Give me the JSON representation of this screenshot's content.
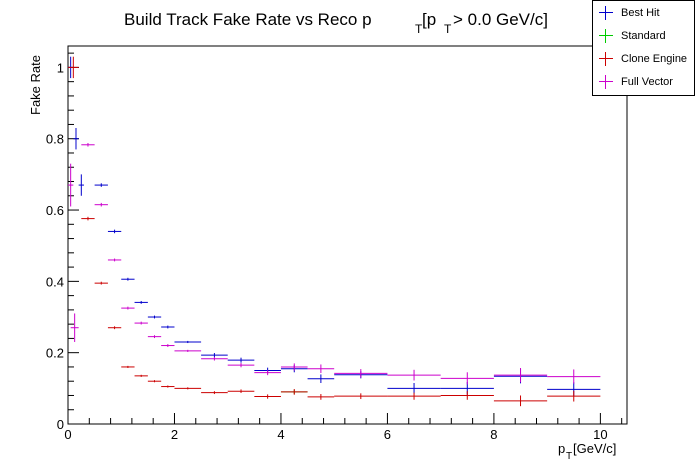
{
  "chart_data": {
    "type": "scatter",
    "title_main": "Build Track Fake Rate vs Reco p",
    "title_sub1": "T",
    "title_mid": " [p",
    "title_sub2": "T",
    "title_tail": " > 0.0 GeV/c]",
    "xlabel_main": "p",
    "xlabel_sub": "T",
    "xlabel_tail": " [GeV/c]",
    "ylabel": "Fake Rate",
    "xlim": [
      0,
      10.5
    ],
    "ylim": [
      0,
      1.06
    ],
    "xticks": [
      0,
      2,
      4,
      6,
      8,
      10
    ],
    "xtick_labels": [
      "0",
      "2",
      "4",
      "6",
      "8",
      "10"
    ],
    "yticks": [
      0,
      0.2,
      0.4,
      0.6,
      0.8,
      1
    ],
    "ytick_labels": [
      "0",
      "0.2",
      "0.4",
      "0.6",
      "0.8",
      "1"
    ],
    "legend_position": "top-right",
    "series": [
      {
        "name": "Best Hit",
        "color": "#0000cc",
        "points": [
          {
            "x": 0.05,
            "xerr": 0.05,
            "y": 1.0,
            "yerr": 0.03
          },
          {
            "x": 0.15,
            "xerr": 0.05,
            "y": 0.8,
            "yerr": 0.03
          },
          {
            "x": 0.25,
            "xerr": 0.05,
            "y": 0.67,
            "yerr": 0.03
          },
          {
            "x": 0.625,
            "xerr": 0.125,
            "y": 0.67,
            "yerr": 0.005
          },
          {
            "x": 0.875,
            "xerr": 0.125,
            "y": 0.54,
            "yerr": 0.005
          },
          {
            "x": 1.125,
            "xerr": 0.125,
            "y": 0.406,
            "yerr": 0.004
          },
          {
            "x": 1.375,
            "xerr": 0.125,
            "y": 0.341,
            "yerr": 0.004
          },
          {
            "x": 1.625,
            "xerr": 0.125,
            "y": 0.3,
            "yerr": 0.004
          },
          {
            "x": 1.875,
            "xerr": 0.125,
            "y": 0.272,
            "yerr": 0.004
          },
          {
            "x": 2.25,
            "xerr": 0.25,
            "y": 0.23,
            "yerr": 0.003
          },
          {
            "x": 2.75,
            "xerr": 0.25,
            "y": 0.193,
            "yerr": 0.006
          },
          {
            "x": 3.25,
            "xerr": 0.25,
            "y": 0.179,
            "yerr": 0.007
          },
          {
            "x": 3.75,
            "xerr": 0.25,
            "y": 0.15,
            "yerr": 0.008
          },
          {
            "x": 4.25,
            "xerr": 0.25,
            "y": 0.155,
            "yerr": 0.01
          },
          {
            "x": 4.75,
            "xerr": 0.25,
            "y": 0.127,
            "yerr": 0.012
          },
          {
            "x": 5.5,
            "xerr": 0.5,
            "y": 0.138,
            "yerr": 0.01
          },
          {
            "x": 6.5,
            "xerr": 0.5,
            "y": 0.1,
            "yerr": 0.015
          },
          {
            "x": 7.5,
            "xerr": 0.5,
            "y": 0.1,
            "yerr": 0.018
          },
          {
            "x": 8.5,
            "xerr": 0.5,
            "y": 0.134,
            "yerr": 0.02
          },
          {
            "x": 9.5,
            "xerr": 0.5,
            "y": 0.097,
            "yerr": 0.02
          }
        ]
      },
      {
        "name": "Standard",
        "color": "#00cc00",
        "points": [
          {
            "x": 4.25,
            "xerr": 0.25,
            "y": 0.09,
            "yerr": 0.006
          }
        ]
      },
      {
        "name": "Clone Engine",
        "color": "#cc0000",
        "points": [
          {
            "x": 0.1,
            "xerr": 0.1,
            "y": 1.0,
            "yerr": 0.03
          },
          {
            "x": 0.375,
            "xerr": 0.125,
            "y": 0.576,
            "yerr": 0.005
          },
          {
            "x": 0.625,
            "xerr": 0.125,
            "y": 0.395,
            "yerr": 0.004
          },
          {
            "x": 0.875,
            "xerr": 0.125,
            "y": 0.27,
            "yerr": 0.004
          },
          {
            "x": 1.125,
            "xerr": 0.125,
            "y": 0.16,
            "yerr": 0.003
          },
          {
            "x": 1.375,
            "xerr": 0.125,
            "y": 0.135,
            "yerr": 0.003
          },
          {
            "x": 1.625,
            "xerr": 0.125,
            "y": 0.12,
            "yerr": 0.003
          },
          {
            "x": 1.875,
            "xerr": 0.125,
            "y": 0.105,
            "yerr": 0.003
          },
          {
            "x": 2.25,
            "xerr": 0.25,
            "y": 0.1,
            "yerr": 0.003
          },
          {
            "x": 2.75,
            "xerr": 0.25,
            "y": 0.088,
            "yerr": 0.004
          },
          {
            "x": 3.25,
            "xerr": 0.25,
            "y": 0.092,
            "yerr": 0.005
          },
          {
            "x": 3.75,
            "xerr": 0.25,
            "y": 0.077,
            "yerr": 0.006
          },
          {
            "x": 4.25,
            "xerr": 0.25,
            "y": 0.09,
            "yerr": 0.008
          },
          {
            "x": 4.75,
            "xerr": 0.25,
            "y": 0.076,
            "yerr": 0.008
          },
          {
            "x": 5.5,
            "xerr": 0.5,
            "y": 0.078,
            "yerr": 0.008
          },
          {
            "x": 6.5,
            "xerr": 0.5,
            "y": 0.078,
            "yerr": 0.01
          },
          {
            "x": 7.5,
            "xerr": 0.5,
            "y": 0.08,
            "yerr": 0.012
          },
          {
            "x": 8.5,
            "xerr": 0.5,
            "y": 0.065,
            "yerr": 0.015
          },
          {
            "x": 9.5,
            "xerr": 0.5,
            "y": 0.078,
            "yerr": 0.015
          }
        ]
      },
      {
        "name": "Full Vector",
        "color": "#cc00cc",
        "points": [
          {
            "x": 0.05,
            "xerr": 0.05,
            "y": 0.67,
            "yerr": 0.06
          },
          {
            "x": 0.125,
            "xerr": 0.075,
            "y": 0.27,
            "yerr": 0.04
          },
          {
            "x": 0.375,
            "xerr": 0.125,
            "y": 0.783,
            "yerr": 0.005
          },
          {
            "x": 0.625,
            "xerr": 0.125,
            "y": 0.615,
            "yerr": 0.005
          },
          {
            "x": 0.875,
            "xerr": 0.125,
            "y": 0.46,
            "yerr": 0.004
          },
          {
            "x": 1.125,
            "xerr": 0.125,
            "y": 0.325,
            "yerr": 0.004
          },
          {
            "x": 1.375,
            "xerr": 0.125,
            "y": 0.283,
            "yerr": 0.004
          },
          {
            "x": 1.625,
            "xerr": 0.125,
            "y": 0.245,
            "yerr": 0.004
          },
          {
            "x": 1.875,
            "xerr": 0.125,
            "y": 0.22,
            "yerr": 0.004
          },
          {
            "x": 2.25,
            "xerr": 0.25,
            "y": 0.205,
            "yerr": 0.003
          },
          {
            "x": 2.75,
            "xerr": 0.25,
            "y": 0.183,
            "yerr": 0.005
          },
          {
            "x": 3.25,
            "xerr": 0.25,
            "y": 0.165,
            "yerr": 0.006
          },
          {
            "x": 3.75,
            "xerr": 0.25,
            "y": 0.144,
            "yerr": 0.007
          },
          {
            "x": 4.25,
            "xerr": 0.25,
            "y": 0.16,
            "yerr": 0.01
          },
          {
            "x": 4.75,
            "xerr": 0.25,
            "y": 0.155,
            "yerr": 0.012
          },
          {
            "x": 5.5,
            "xerr": 0.5,
            "y": 0.142,
            "yerr": 0.012
          },
          {
            "x": 6.5,
            "xerr": 0.5,
            "y": 0.137,
            "yerr": 0.015
          },
          {
            "x": 7.5,
            "xerr": 0.5,
            "y": 0.128,
            "yerr": 0.017
          },
          {
            "x": 8.5,
            "xerr": 0.5,
            "y": 0.137,
            "yerr": 0.02
          },
          {
            "x": 9.5,
            "xerr": 0.5,
            "y": 0.133,
            "yerr": 0.02
          }
        ]
      }
    ]
  }
}
